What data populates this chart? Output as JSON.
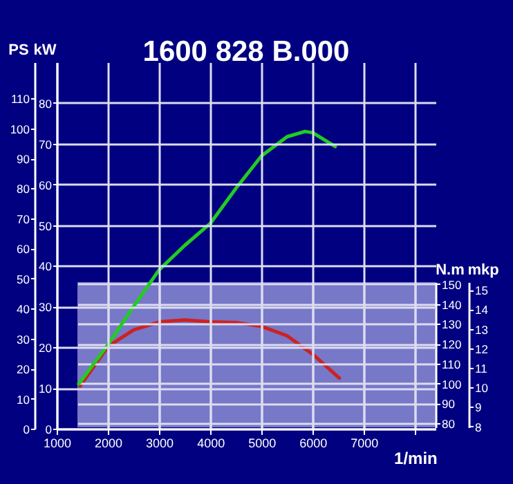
{
  "chart_data": [
    {
      "type": "line",
      "title": "1600 828 B.000",
      "xlabel": "1/min",
      "ylabel": "kW",
      "y2label": "PS",
      "xlim": [
        1000,
        8400
      ],
      "xticks": [
        1000,
        2000,
        3000,
        4000,
        5000,
        6000,
        7000,
        {
          "value": 8000,
          "label": null
        }
      ],
      "ylim": [
        0,
        90
      ],
      "yticks": [
        0,
        10,
        20,
        30,
        40,
        50,
        60,
        70,
        80
      ],
      "y2lim": [
        0,
        122
      ],
      "y2ticks": [
        0,
        10,
        20,
        30,
        40,
        50,
        60,
        70,
        80,
        90,
        100,
        110
      ],
      "grid": true,
      "series": [
        {
          "color": "#22cc22",
          "x": [
            1430,
            2000,
            2500,
            3000,
            3500,
            4000,
            4500,
            5000,
            5500,
            5850,
            6000,
            6440
          ],
          "values": [
            11,
            20.6,
            30,
            39,
            45,
            50.4,
            59,
            67,
            71.7,
            73,
            72.7,
            69.3
          ]
        }
      ]
    },
    {
      "type": "line",
      "ylabel": "N.m",
      "y2label": "mkp",
      "tick_labels": "y",
      "xlim": [
        1400,
        8400
      ],
      "xticks": [
        2000,
        3000,
        4000,
        5000,
        6000,
        7000,
        8000
      ],
      "ylim": [
        78,
        151
      ],
      "yticks": [
        80,
        90,
        100,
        110,
        120,
        130,
        140,
        150
      ],
      "y2lim": [
        7.95,
        15.4
      ],
      "y2ticks": [
        8,
        9,
        10,
        11,
        12,
        13,
        14,
        15
      ],
      "grid": true,
      "bands": [
        {
          "axis": "y",
          "from": 78,
          "to": 151,
          "color": "#7878c8"
        }
      ],
      "series": [
        {
          "color": "#cc2222",
          "x": [
            1450,
            2000,
            2500,
            3000,
            3500,
            4000,
            4500,
            5000,
            5500,
            6000,
            6520
          ],
          "values": [
            98.7,
            118.7,
            127,
            131,
            132,
            131,
            130.7,
            128.7,
            124,
            114.7,
            102.7
          ]
        }
      ]
    }
  ]
}
